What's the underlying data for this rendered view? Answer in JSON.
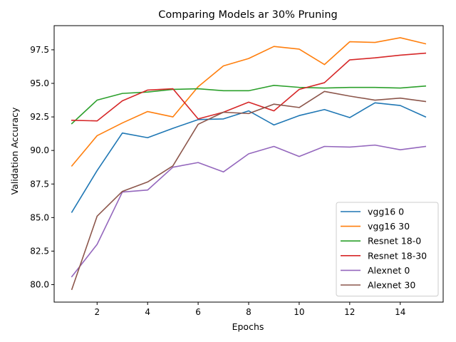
{
  "chart_data": {
    "type": "line",
    "title": "Comparing Models ar 30% Pruning",
    "xlabel": "Epochs",
    "ylabel": "Validation Accuracy",
    "xlim": [
      0.3,
      15.7
    ],
    "ylim": [
      78.7,
      99.3
    ],
    "xticks": [
      2,
      4,
      6,
      8,
      10,
      12,
      14
    ],
    "xtick_labels": [
      "2",
      "4",
      "6",
      "8",
      "10",
      "12",
      "14"
    ],
    "yticks": [
      80.0,
      82.5,
      85.0,
      87.5,
      90.0,
      92.5,
      95.0,
      97.5
    ],
    "ytick_labels": [
      "80.0",
      "82.5",
      "85.0",
      "87.5",
      "90.0",
      "92.5",
      "95.0",
      "97.5"
    ],
    "grid": false,
    "legend_position": "lower-right",
    "x": [
      1,
      2,
      3,
      4,
      5,
      6,
      7,
      8,
      9,
      10,
      11,
      12,
      13,
      14,
      15
    ],
    "series": [
      {
        "name": "vgg16 0",
        "color": "#1f77b4",
        "values": [
          85.4,
          88.5,
          91.3,
          90.95,
          91.65,
          92.3,
          92.35,
          92.95,
          91.9,
          92.6,
          93.05,
          92.45,
          93.55,
          93.35,
          92.5
        ]
      },
      {
        "name": "vgg16 30",
        "color": "#ff7f0e",
        "values": [
          88.85,
          91.1,
          92.05,
          92.9,
          92.5,
          94.75,
          96.3,
          96.85,
          97.75,
          97.55,
          96.4,
          98.1,
          98.05,
          98.4,
          97.95
        ]
      },
      {
        "name": "Resnet 18-0",
        "color": "#2ca02c",
        "values": [
          92.0,
          93.75,
          94.25,
          94.35,
          94.55,
          94.6,
          94.45,
          94.45,
          94.85,
          94.7,
          94.65,
          94.7,
          94.7,
          94.65,
          94.8
        ]
      },
      {
        "name": "Resnet 18-30",
        "color": "#d62728",
        "values": [
          92.25,
          92.2,
          93.7,
          94.5,
          94.6,
          92.35,
          92.85,
          93.6,
          92.95,
          94.55,
          95.05,
          96.75,
          96.9,
          97.1,
          97.25
        ]
      },
      {
        "name": "Alexnet 0",
        "color": "#9467bd",
        "values": [
          80.6,
          83.0,
          86.9,
          87.05,
          88.75,
          89.1,
          88.4,
          89.75,
          90.3,
          89.55,
          90.3,
          90.25,
          90.4,
          90.05,
          90.3
        ]
      },
      {
        "name": "Alexnet 30",
        "color": "#8c564b",
        "values": [
          79.65,
          85.1,
          86.95,
          87.65,
          88.85,
          91.95,
          92.85,
          92.75,
          93.45,
          93.2,
          94.4,
          94.05,
          93.75,
          93.9,
          93.65
        ]
      }
    ]
  }
}
